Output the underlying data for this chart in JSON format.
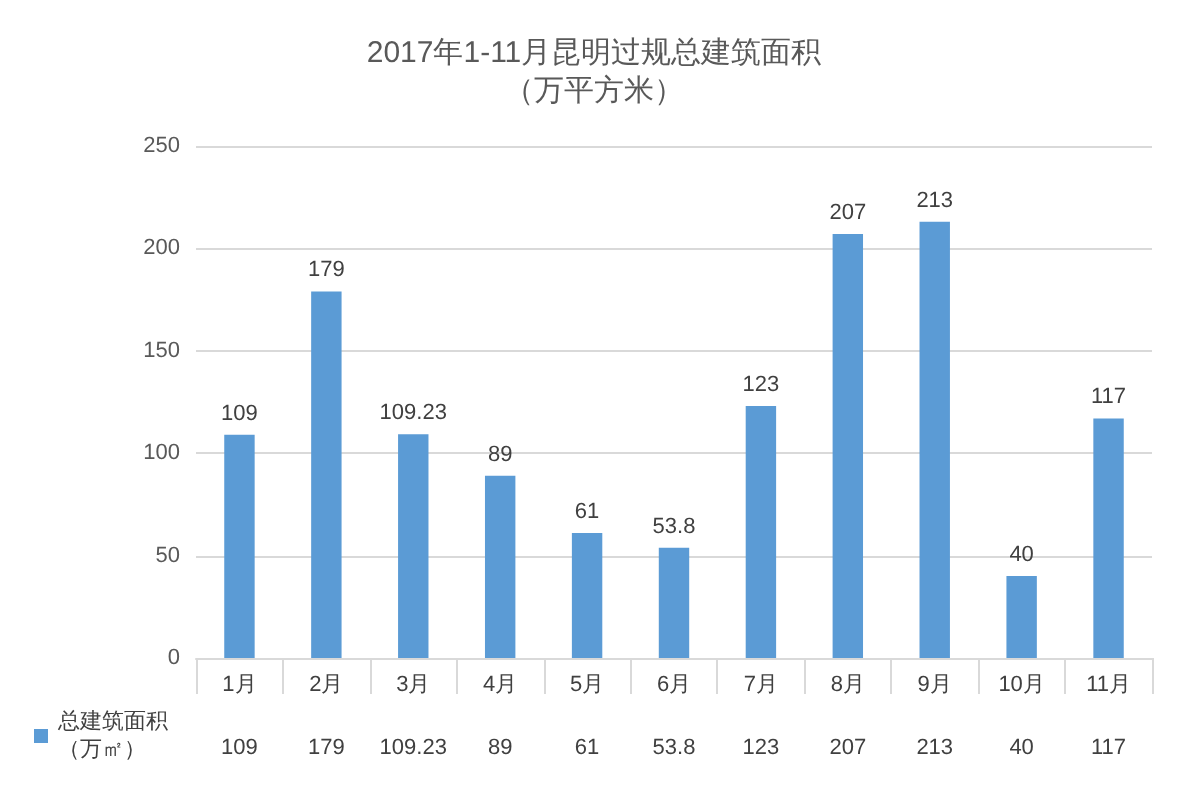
{
  "chart_data": {
    "type": "bar",
    "title": "2017年1-11月昆明过规总建筑面积",
    "subtitle": "（万平方米）",
    "categories": [
      "1月",
      "2月",
      "3月",
      "4月",
      "5月",
      "6月",
      "7月",
      "8月",
      "9月",
      "10月",
      "11月"
    ],
    "series": [
      {
        "name": "总建筑面积（万㎡）",
        "color": "#5b9bd5",
        "values": [
          109,
          179,
          109.23,
          89,
          61,
          53.8,
          123,
          207,
          213,
          40,
          117
        ],
        "value_labels": [
          "109",
          "179",
          "109.23",
          "89",
          "61",
          "53.8",
          "123",
          "207",
          "213",
          "40",
          "117"
        ]
      }
    ],
    "ylim": [
      0,
      250
    ],
    "yticks": [
      0,
      50,
      100,
      150,
      200,
      250
    ],
    "grid": "y",
    "legend": "bottom left",
    "annotations": [
      "109",
      "179",
      "109.23",
      "89",
      "61",
      "53.8",
      "123",
      "207",
      "213",
      "40",
      "117"
    ]
  }
}
